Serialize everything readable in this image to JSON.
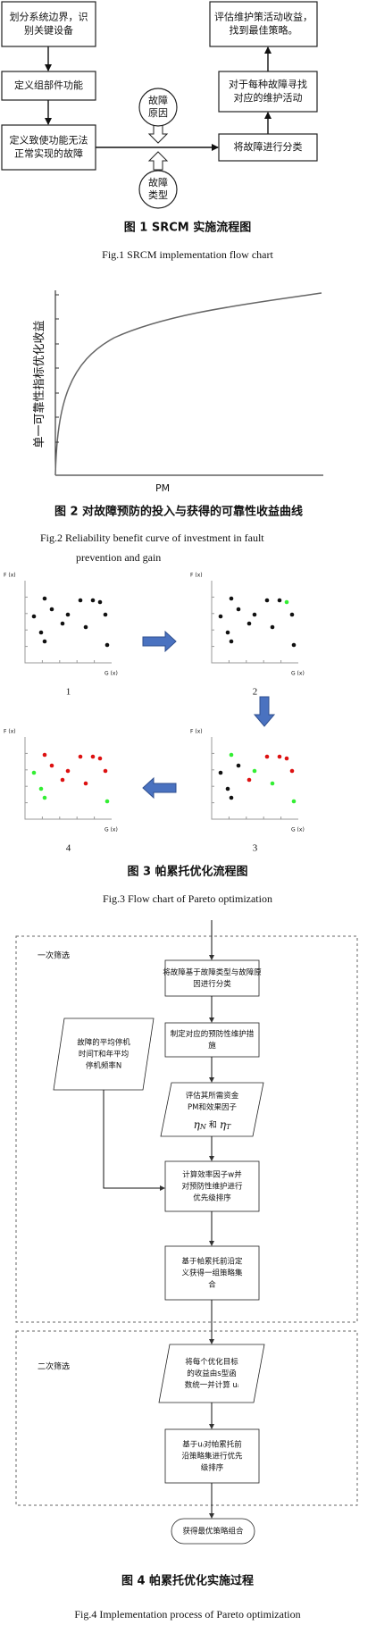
{
  "figure1": {
    "boxes": [
      {
        "lines": [
          "划分系统边界，识",
          "别关键设备"
        ]
      },
      {
        "lines": [
          "定义组部件功能"
        ]
      },
      {
        "lines": [
          "定义致使功能无法",
          "正常实现的故障"
        ]
      },
      {
        "lines": [
          "将故障进行分类"
        ]
      },
      {
        "lines": [
          "对于每种故障寻找",
          "对应的维护活动"
        ]
      },
      {
        "lines": [
          "评估维护策活动收益，",
          "找到最佳策略。"
        ]
      }
    ],
    "circles": [
      {
        "lines": [
          "故障",
          "原因"
        ]
      },
      {
        "lines": [
          "故障",
          "类型"
        ]
      }
    ],
    "caption_cn": "图 1  SRCM 实施流程图",
    "caption_en": "Fig.1  SRCM implementation flow chart"
  },
  "figure2": {
    "y_label": "单一可靠性指标优化收益",
    "x_label": "PM",
    "caption_cn": "图 2  对故障预防的投入与获得的可靠性收益曲线",
    "caption_en": [
      "Fig.2  Reliability benefit curve of investment in fault",
      "prevention and gain"
    ]
  },
  "figure3": {
    "panels": [
      {
        "label": "1",
        "y_axis": "F (x)",
        "x_axis": "G (x)"
      },
      {
        "label": "2",
        "y_axis": "F (x)",
        "x_axis": "G (x)"
      },
      {
        "label": "3",
        "y_axis": "F (x)",
        "x_axis": "G (x)"
      },
      {
        "label": "4",
        "y_axis": "F (x)",
        "x_axis": "G (x)"
      }
    ],
    "caption_cn": "图 3  帕累托优化流程图",
    "caption_en": "Fig.3  Flow chart of Pareto optimization"
  },
  "figure4": {
    "stage_labels": [
      "一次筛选",
      "二次筛选"
    ],
    "nodes": [
      {
        "lines": [
          "将故障基于故障类型与故障原",
          "因进行分类"
        ]
      },
      {
        "lines": [
          "制定对应的预防性维护措",
          "施"
        ]
      },
      {
        "lines": [
          "评估其所需资金",
          "PM和效果因子"
        ],
        "formula": {
          "eta_n": "η",
          "sub_n": "N",
          "and": "和",
          "eta_t": "η",
          "sub_t": "T"
        }
      },
      {
        "lines": [
          "故障的平均停机",
          "时间T和年平均",
          "停机频率N"
        ]
      },
      {
        "lines": [
          "计算效率因子w并",
          "对预防性维护进行",
          "优先级排序"
        ]
      },
      {
        "lines": [
          "基于帕累托前沿定",
          "义获得一组策略集",
          "合"
        ]
      },
      {
        "lines": [
          "将每个优化目标",
          "的收益由s型函",
          "数统一并计算 uᵢ"
        ]
      },
      {
        "lines": [
          "基于uᵢ对帕累托前",
          "沿策略集进行优先",
          "级排序"
        ]
      },
      {
        "lines": [
          "获得最优策略组合"
        ]
      }
    ],
    "caption_cn": "图 4  帕累托优化实施过程",
    "caption_en": "Fig.4  Implementation process of Pareto optimization"
  }
}
